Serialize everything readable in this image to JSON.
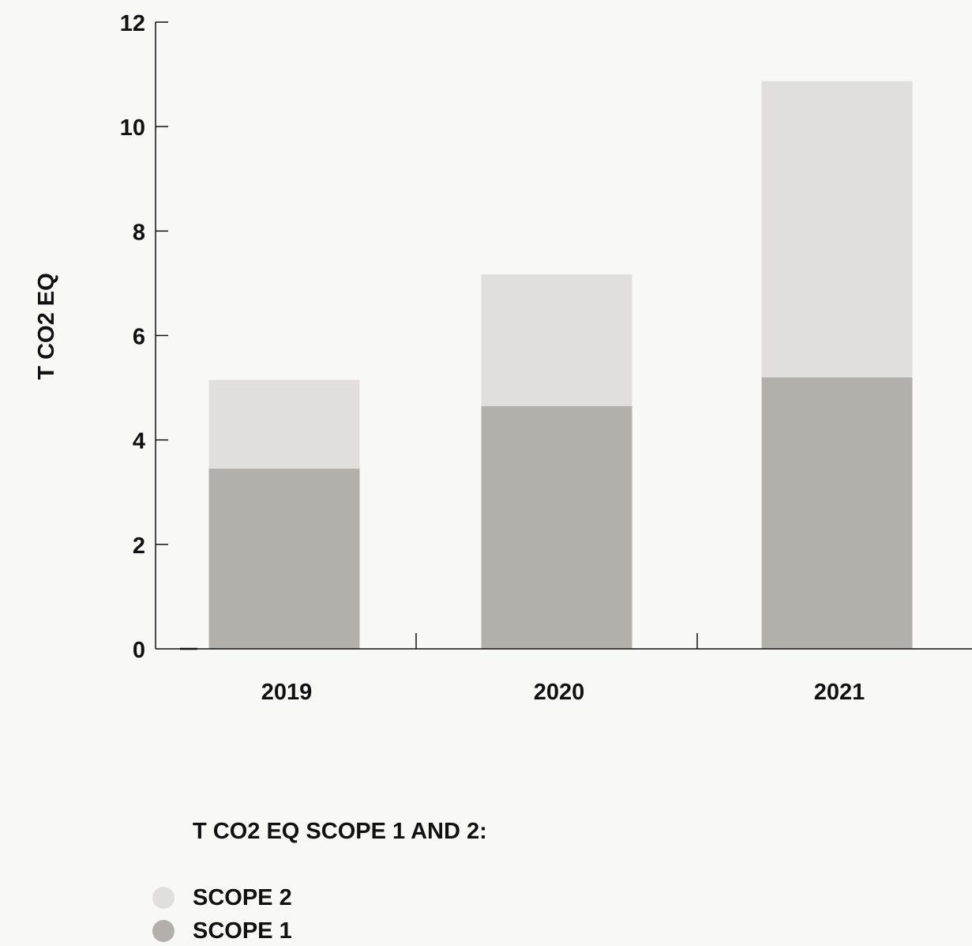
{
  "chart_data": {
    "type": "bar",
    "stacked": true,
    "categories": [
      "2019",
      "2020",
      "2021"
    ],
    "series": [
      {
        "name": "SCOPE 1",
        "values": [
          3.45,
          4.65,
          5.2
        ],
        "color": "#b3b0ac"
      },
      {
        "name": "SCOPE 2",
        "values": [
          1.7,
          2.52,
          5.67
        ],
        "color": "#e0dfdc"
      }
    ],
    "ylabel": "T CO2 EQ",
    "xlabel": "",
    "ylim": [
      0,
      12
    ],
    "yticks": [
      "0",
      "2",
      "4",
      "6",
      "8",
      "10",
      "12"
    ],
    "grid": false
  },
  "legend": {
    "title": "T CO2 EQ SCOPE 1 AND 2:",
    "items": [
      {
        "label": "SCOPE 2",
        "color": "#e0dfdc"
      },
      {
        "label": "SCOPE 1",
        "color": "#b3b0ac"
      }
    ]
  }
}
